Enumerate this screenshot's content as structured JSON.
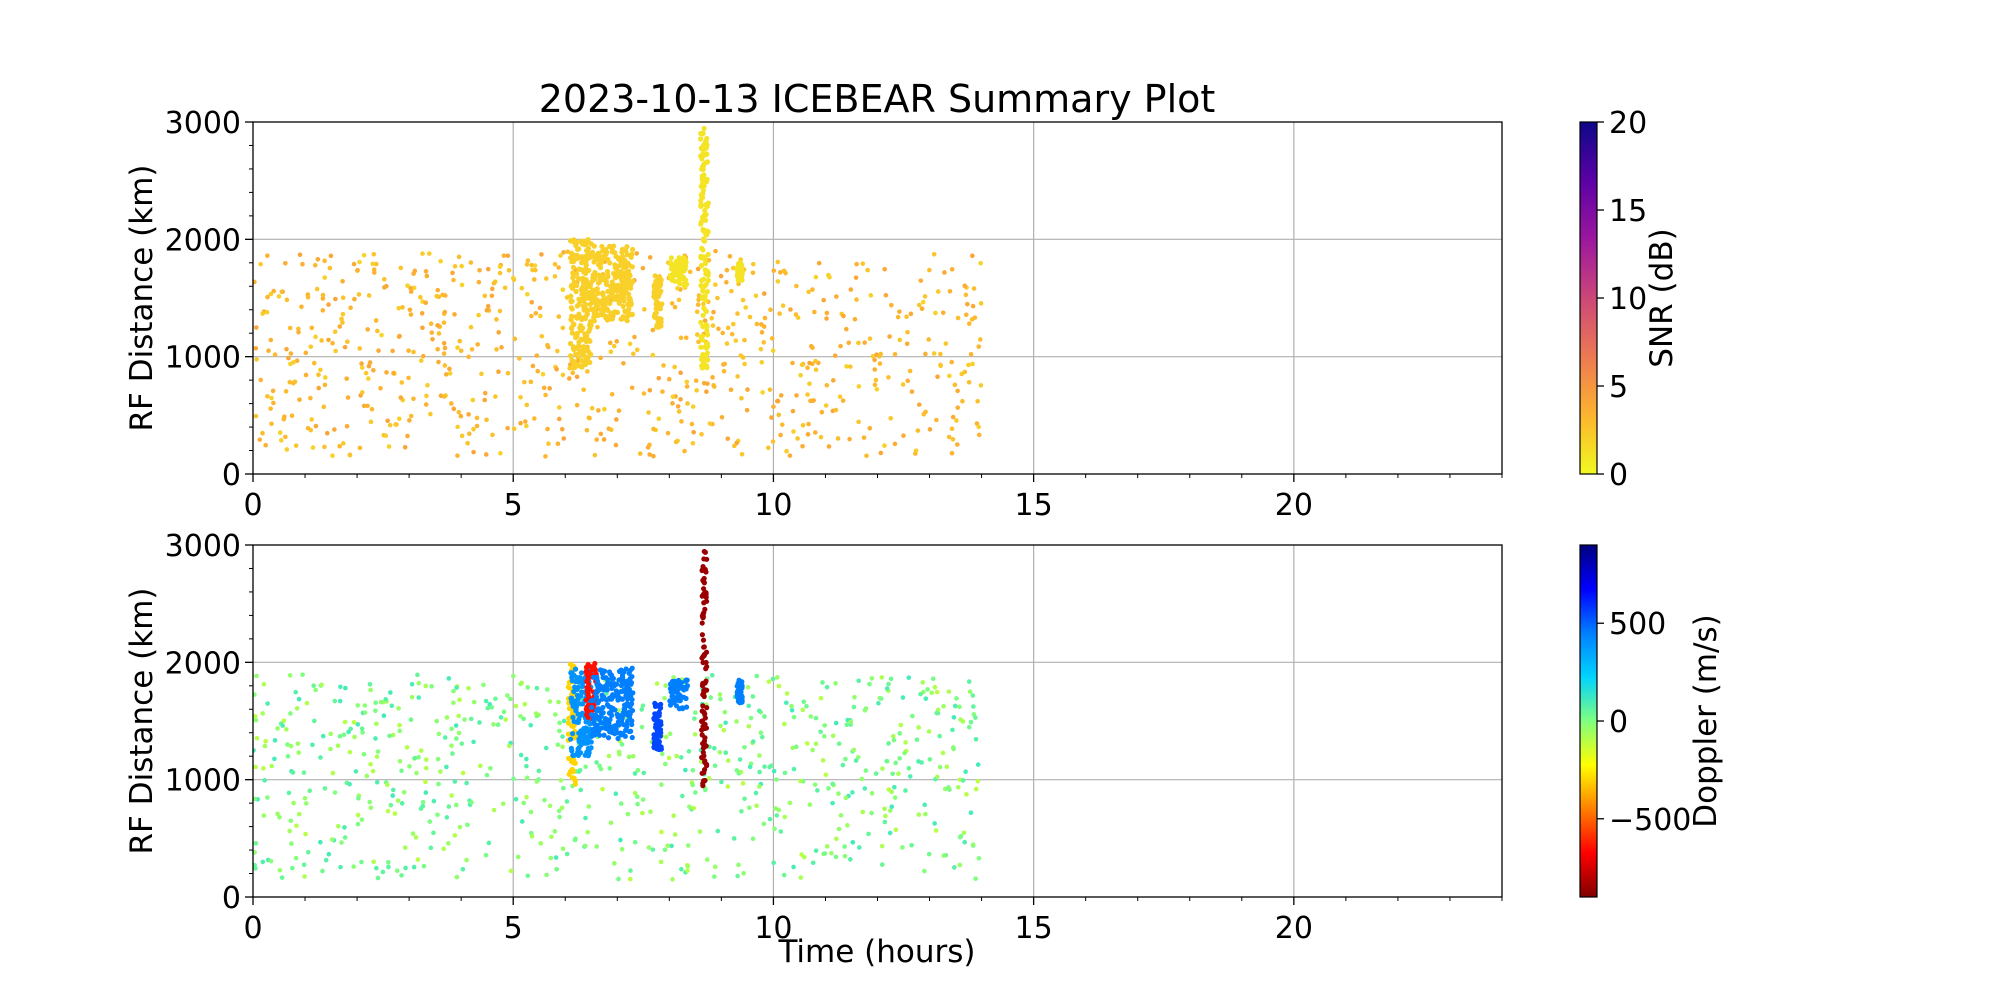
{
  "figure": {
    "title": "2023-10-13 ICEBEAR Summary Plot",
    "xlabel": "Time (hours)"
  },
  "chart_data": [
    {
      "type": "scatter",
      "panel": "top",
      "title": "2023-10-13 ICEBEAR Summary Plot",
      "xlabel": "",
      "ylabel": "RF Distance (km)",
      "xlim": [
        0,
        24
      ],
      "ylim": [
        0,
        3000
      ],
      "xticks": [
        0,
        5,
        10,
        15,
        20
      ],
      "yticks": [
        0,
        1000,
        2000,
        3000
      ],
      "grid": true,
      "color_variable": "SNR (dB)",
      "colorbar": {
        "label": "SNR (dB)",
        "range": [
          0,
          20
        ],
        "ticks": [
          0,
          5,
          10,
          15,
          20
        ],
        "colormap": "plasma_r",
        "colors": [
          "#f0f921",
          "#fdb42f",
          "#ed7953",
          "#cc4778",
          "#9c179e",
          "#5c01a6",
          "#0d0887"
        ]
      },
      "series": [
        {
          "kind": "scattered points",
          "x_range": [
            0,
            14
          ],
          "y_range": [
            150,
            1900
          ],
          "typical_value": 3,
          "color": "#f7a43a"
        },
        {
          "kind": "dense echo patches",
          "clusters": [
            {
              "x": [
                6.1,
                6.5
              ],
              "y": [
                900,
                2000
              ],
              "value": 2
            },
            {
              "x": [
                6.5,
                7.3
              ],
              "y": [
                1300,
                1950
              ],
              "value": 2
            },
            {
              "x": [
                7.7,
                7.85
              ],
              "y": [
                1250,
                1700
              ],
              "value": 2
            },
            {
              "x": [
                8.0,
                8.35
              ],
              "y": [
                1600,
                1850
              ],
              "value": 1
            },
            {
              "x": [
                8.6,
                8.75
              ],
              "y": [
                900,
                2950
              ],
              "value": 1
            },
            {
              "x": [
                9.3,
                9.4
              ],
              "y": [
                1650,
                1800
              ],
              "value": 1
            }
          ]
        }
      ]
    },
    {
      "type": "scatter",
      "panel": "bottom",
      "xlabel": "Time (hours)",
      "ylabel": "RF Distance (km)",
      "xlim": [
        0,
        24
      ],
      "ylim": [
        0,
        3000
      ],
      "xticks": [
        0,
        5,
        10,
        15,
        20
      ],
      "yticks": [
        0,
        1000,
        2000,
        3000
      ],
      "grid": true,
      "color_variable": "Doppler (m/s)",
      "colorbar": {
        "label": "Doppler (m/s)",
        "range": [
          -900,
          900
        ],
        "ticks": [
          -500,
          0,
          500
        ],
        "tick_labels": [
          "−500",
          "0",
          "500"
        ],
        "colormap": "jet_r",
        "colors": [
          "#7f0000",
          "#ff0000",
          "#ff7f00",
          "#ffff00",
          "#7fff7f",
          "#00d4ff",
          "#007fff",
          "#0000ff",
          "#00007f"
        ]
      },
      "series": [
        {
          "kind": "scattered points",
          "x_range": [
            0,
            14
          ],
          "y_range": [
            150,
            1900
          ],
          "typical_value": 0,
          "color": "#7dff7a"
        },
        {
          "kind": "dense echo patches",
          "clusters": [
            {
              "x": [
                6.05,
                6.2
              ],
              "y": [
                950,
                2000
              ],
              "value": -300
            },
            {
              "x": [
                6.1,
                6.5
              ],
              "y": [
                1200,
                1950
              ],
              "value": 400
            },
            {
              "x": [
                6.4,
                6.6
              ],
              "y": [
                1500,
                2000
              ],
              "value": -650
            },
            {
              "x": [
                6.5,
                7.3
              ],
              "y": [
                1350,
                1950
              ],
              "value": 450
            },
            {
              "x": [
                7.7,
                7.85
              ],
              "y": [
                1250,
                1650
              ],
              "value": 550
            },
            {
              "x": [
                8.0,
                8.35
              ],
              "y": [
                1600,
                1850
              ],
              "value": 450
            },
            {
              "x": [
                8.62,
                8.72
              ],
              "y": [
                900,
                2950
              ],
              "value": -850
            },
            {
              "x": [
                9.3,
                9.4
              ],
              "y": [
                1650,
                1850
              ],
              "value": 450
            }
          ]
        }
      ]
    }
  ]
}
